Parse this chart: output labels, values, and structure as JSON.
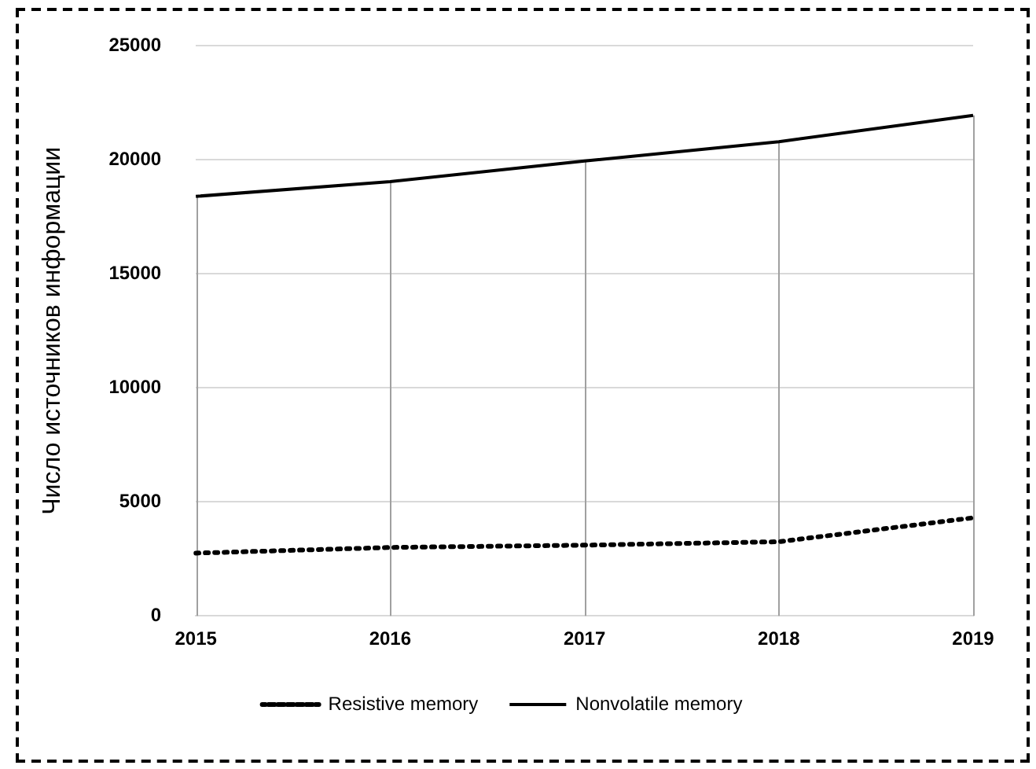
{
  "chart_data": {
    "type": "line",
    "ylabel": "Число источников информации",
    "categories": [
      "2015",
      "2016",
      "2017",
      "2018",
      "2019"
    ],
    "series": [
      {
        "name": "Resistive memory",
        "color": "#000000",
        "line_style": "dotted",
        "values": [
          2750,
          3000,
          3100,
          3250,
          4300
        ]
      },
      {
        "name": "Nonvolatile memory",
        "color": "#000000",
        "line_style": "solid",
        "values": [
          18400,
          19050,
          19950,
          20800,
          21950
        ]
      }
    ],
    "ylim": [
      0,
      25000
    ],
    "yticks": [
      0,
      5000,
      10000,
      15000,
      20000,
      25000
    ],
    "grid": true,
    "legend": "bottom",
    "marker": "none"
  }
}
